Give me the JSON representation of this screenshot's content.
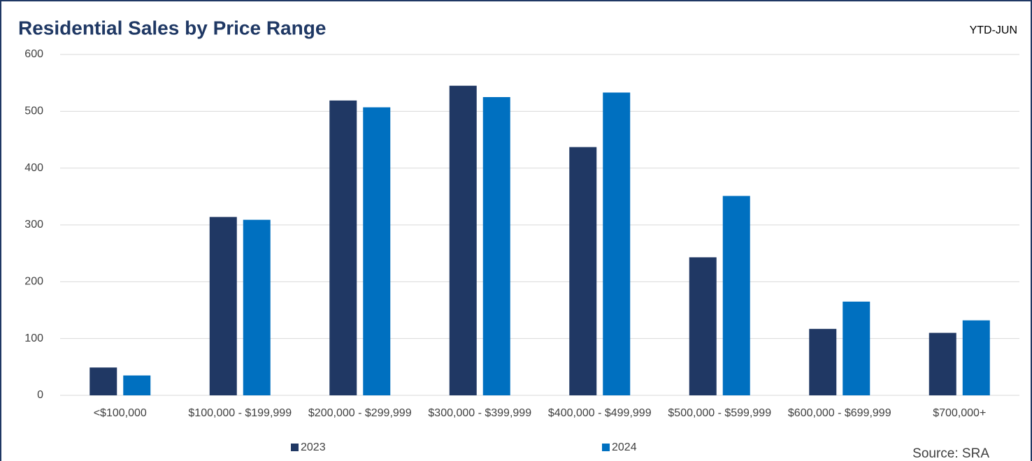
{
  "chart_data": {
    "type": "bar",
    "title": "Residential Sales by Price Range",
    "subtitle": "YTD-JUN",
    "source": "Source: SRA",
    "categories": [
      "<$100,000",
      "$100,000 - $199,999",
      "$200,000 - $299,999",
      "$300,000 - $399,999",
      "$400,000 - $499,999",
      "$500,000 - $599,999",
      "$600,000 - $699,999",
      "$700,000+"
    ],
    "series": [
      {
        "name": "2023",
        "color": "#203864",
        "values": [
          49,
          314,
          519,
          545,
          437,
          243,
          117,
          110
        ]
      },
      {
        "name": "2024",
        "color": "#0070c0",
        "values": [
          35,
          309,
          507,
          525,
          533,
          351,
          165,
          132
        ]
      }
    ],
    "ylim": [
      0,
      600
    ],
    "yticks": [
      0,
      100,
      200,
      300,
      400,
      500,
      600
    ],
    "grid": true,
    "legend": "bottom"
  }
}
